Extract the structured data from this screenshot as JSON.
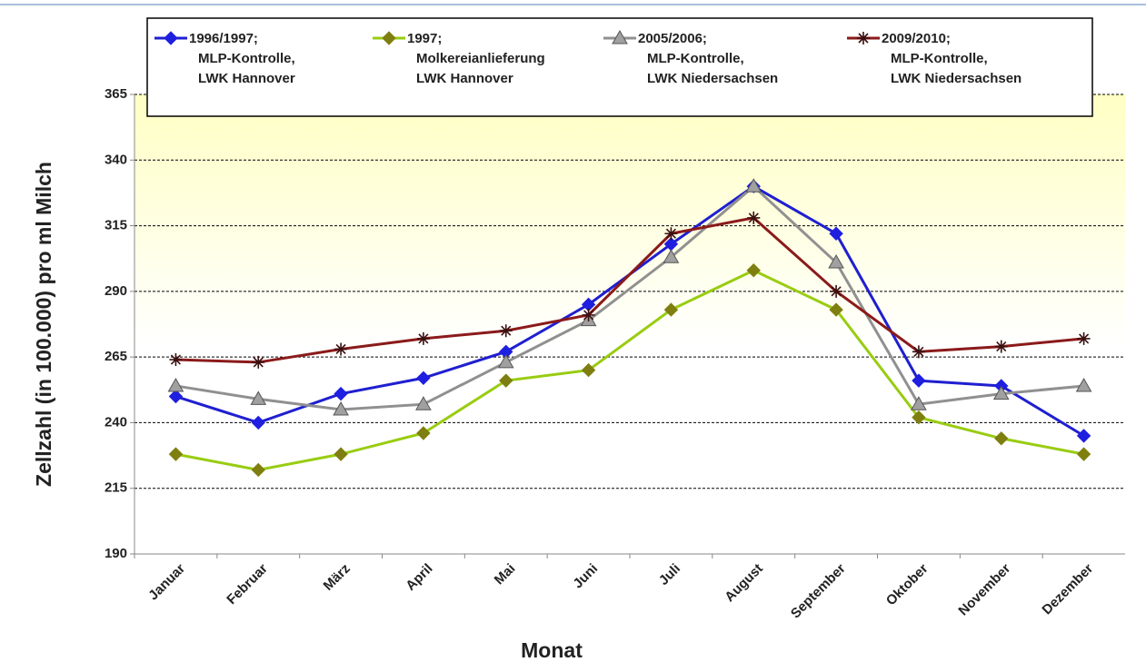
{
  "chart_data": {
    "type": "line",
    "xlabel": "Monat",
    "ylabel": "Zellzahl (in 100.000) pro ml Milch",
    "categories": [
      "Januar",
      "Februar",
      "März",
      "April",
      "Mai",
      "Juni",
      "Juli",
      "August",
      "September",
      "Oktober",
      "November",
      "Dezember"
    ],
    "series": [
      {
        "name": "1996/1997;\nMLP-Kontrolle,\nLWK Hannover",
        "color": "#1f1fd0",
        "marker": "diamond",
        "marker_color": "#1f1fe0",
        "values": [
          250,
          240,
          251,
          257,
          267,
          285,
          308,
          330,
          312,
          256,
          254,
          235
        ]
      },
      {
        "name": "1997;\nMolkereianlieferung\nLWK Hannover",
        "color": "#99cc11",
        "marker": "diamond",
        "marker_color": "#7f7f10",
        "values": [
          228,
          222,
          228,
          236,
          256,
          260,
          283,
          298,
          283,
          242,
          234,
          228
        ]
      },
      {
        "name": "2005/2006;\nMLP-Kontrolle,\nLWK Niedersachsen",
        "color": "#909090",
        "marker": "triangle",
        "marker_color": "#a0a0a0",
        "values": [
          254,
          249,
          245,
          247,
          263,
          279,
          303,
          330,
          301,
          247,
          251,
          254
        ]
      },
      {
        "name": "2009/2010;\nMLP-Kontrolle,\nLWK Niedersachsen",
        "color": "#8b1a1a",
        "marker": "star",
        "marker_color": "#3a1010",
        "values": [
          264,
          263,
          268,
          272,
          275,
          281,
          312,
          318,
          290,
          267,
          269,
          272
        ]
      }
    ],
    "ylim": [
      190,
      365
    ],
    "yticks": [
      190,
      215,
      240,
      265,
      290,
      315,
      340,
      365
    ],
    "grid": true
  }
}
